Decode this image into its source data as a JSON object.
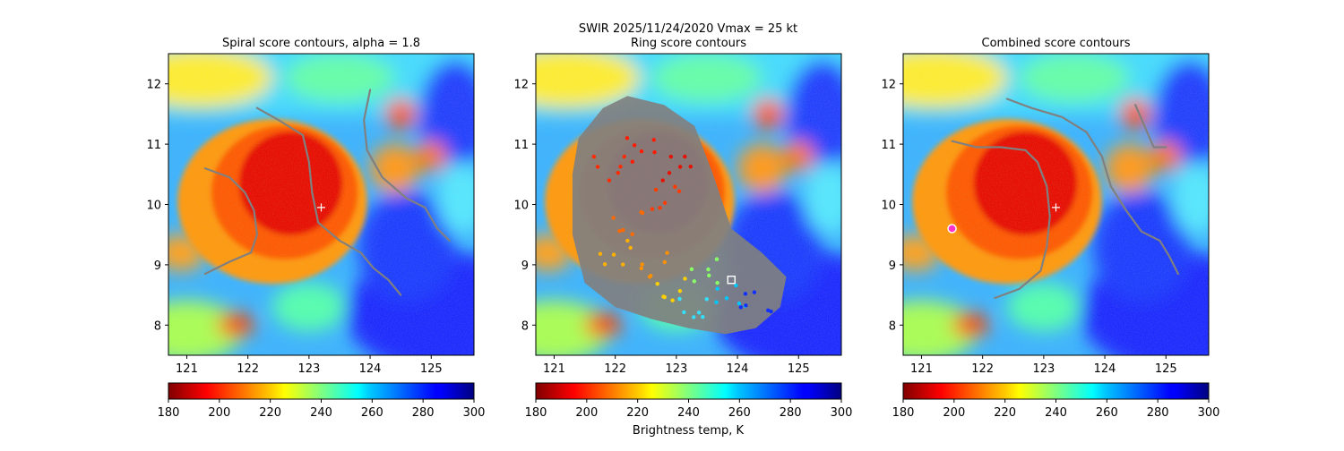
{
  "figure": {
    "suptitle": "SWIR  2025/11/24/2020    Vmax = 25 kt",
    "colorbar_label": "Brightness temp, K"
  },
  "colors": {
    "contour": "#808080",
    "marker": "#ffffff",
    "magenta": "#ff33cc"
  },
  "chart_data": [
    {
      "type": "heatmap",
      "title": "Spiral score contours, alpha =  1.8",
      "xlim": [
        120.7,
        125.7
      ],
      "ylim": [
        7.5,
        12.5
      ],
      "x_ticks": [
        "121",
        "122",
        "123",
        "124",
        "125"
      ],
      "y_ticks": [
        "8",
        "9",
        "10",
        "11",
        "12"
      ],
      "colorbar": {
        "range": [
          180,
          300
        ],
        "ticks": [
          "180",
          "200",
          "220",
          "240",
          "260",
          "280",
          "300"
        ],
        "colormap": "jet_r"
      },
      "contours": [
        [
          [
            121.3,
            10.6
          ],
          [
            121.7,
            10.45
          ],
          [
            121.95,
            10.2
          ],
          [
            122.1,
            9.9
          ],
          [
            122.15,
            9.5
          ],
          [
            122.05,
            9.2
          ],
          [
            121.7,
            9.05
          ],
          [
            121.3,
            8.85
          ]
        ],
        [
          [
            122.15,
            11.6
          ],
          [
            122.5,
            11.4
          ],
          [
            122.9,
            11.15
          ],
          [
            123.0,
            10.7
          ],
          [
            123.05,
            10.2
          ],
          [
            123.15,
            9.7
          ],
          [
            123.5,
            9.4
          ],
          [
            123.85,
            9.2
          ],
          [
            124.05,
            8.95
          ],
          [
            124.3,
            8.75
          ],
          [
            124.5,
            8.5
          ]
        ],
        [
          [
            124.0,
            11.9
          ],
          [
            123.9,
            11.4
          ],
          [
            123.95,
            10.9
          ],
          [
            124.2,
            10.45
          ],
          [
            124.6,
            10.1
          ],
          [
            124.9,
            9.95
          ],
          [
            125.1,
            9.6
          ],
          [
            125.3,
            9.4
          ]
        ]
      ],
      "markers": [
        {
          "type": "plus",
          "x": 123.2,
          "y": 9.95
        }
      ]
    },
    {
      "type": "heatmap",
      "title": "Ring score contours",
      "xlim": [
        120.7,
        125.7
      ],
      "ylim": [
        7.5,
        12.5
      ],
      "x_ticks": [
        "121",
        "122",
        "123",
        "124",
        "125"
      ],
      "y_ticks": [
        "8",
        "9",
        "10",
        "11",
        "12"
      ],
      "colorbar": {
        "range": [
          180,
          300
        ],
        "ticks": [
          "180",
          "200",
          "220",
          "240",
          "260",
          "280",
          "300"
        ],
        "colormap": "jet_r"
      },
      "ring_region": [
        [
          121.3,
          10.5
        ],
        [
          121.4,
          11.1
        ],
        [
          121.8,
          11.6
        ],
        [
          122.2,
          11.8
        ],
        [
          122.8,
          11.65
        ],
        [
          123.3,
          11.3
        ],
        [
          123.6,
          10.5
        ],
        [
          123.9,
          9.6
        ],
        [
          124.4,
          9.2
        ],
        [
          124.8,
          8.8
        ],
        [
          124.7,
          8.3
        ],
        [
          124.3,
          7.95
        ],
        [
          123.8,
          7.85
        ],
        [
          123.2,
          7.95
        ],
        [
          122.6,
          8.1
        ],
        [
          122.0,
          8.3
        ],
        [
          121.5,
          8.7
        ],
        [
          121.3,
          9.5
        ]
      ],
      "markers": [
        {
          "type": "square",
          "x": 123.9,
          "y": 8.75
        }
      ]
    },
    {
      "type": "heatmap",
      "title": "Combined score contours",
      "xlim": [
        120.7,
        125.7
      ],
      "ylim": [
        7.5,
        12.5
      ],
      "x_ticks": [
        "121",
        "122",
        "123",
        "124",
        "125"
      ],
      "y_ticks": [
        "8",
        "9",
        "10",
        "11",
        "12"
      ],
      "colorbar": {
        "range": [
          180,
          300
        ],
        "ticks": [
          "180",
          "200",
          "220",
          "240",
          "260",
          "280",
          "300"
        ],
        "colormap": "jet_r"
      },
      "contours": [
        [
          [
            121.5,
            11.05
          ],
          [
            121.9,
            10.95
          ],
          [
            122.3,
            10.95
          ],
          [
            122.7,
            10.9
          ],
          [
            122.9,
            10.7
          ],
          [
            123.05,
            10.3
          ],
          [
            123.1,
            9.8
          ],
          [
            123.05,
            9.3
          ],
          [
            122.95,
            8.9
          ],
          [
            122.6,
            8.6
          ],
          [
            122.2,
            8.45
          ]
        ],
        [
          [
            122.4,
            11.75
          ],
          [
            122.8,
            11.6
          ],
          [
            123.3,
            11.45
          ],
          [
            123.7,
            11.2
          ],
          [
            123.95,
            10.8
          ],
          [
            124.1,
            10.3
          ],
          [
            124.35,
            9.9
          ],
          [
            124.6,
            9.55
          ],
          [
            124.9,
            9.4
          ],
          [
            125.05,
            9.15
          ],
          [
            125.2,
            8.85
          ]
        ],
        [
          [
            124.5,
            11.65
          ],
          [
            124.65,
            11.3
          ],
          [
            124.8,
            10.95
          ],
          [
            125.0,
            10.95
          ]
        ]
      ],
      "markers": [
        {
          "type": "plus",
          "x": 123.2,
          "y": 9.95
        },
        {
          "type": "circle",
          "x": 121.5,
          "y": 9.6
        }
      ]
    }
  ]
}
